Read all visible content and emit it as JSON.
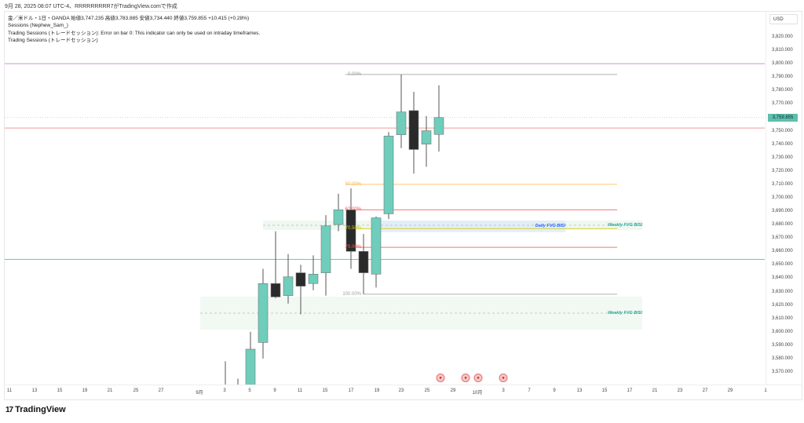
{
  "caption": "9月 28, 2025 08:07 UTC-4、RRRRRRRRR7がTradingView.comで作成",
  "legend": {
    "symbol_line": "金／米ドル・1日・OANDA  始値3,747.235  高値3,783.885  安値3,734.440  終値3,759.855  +10.415 (+0.28%)",
    "line2": "Sessions (Nephew_Sam_)",
    "line3": "Trading Sessions (トレードセッション): Error on bar 0: This indicator can only be used on intraday timeframes.",
    "line4": "Trading Sessions (トレードセッション)"
  },
  "price_axis": {
    "currency": "USD",
    "current_price": "3,759.855",
    "ticks": [
      "3,820.000",
      "3,810.000",
      "3,800.000",
      "3,790.000",
      "3,780.000",
      "3,770.000",
      "3,750.000",
      "3,740.000",
      "3,730.000",
      "3,720.000",
      "3,710.000",
      "3,700.000",
      "3,690.000",
      "3,680.000",
      "3,670.000",
      "3,660.000",
      "3,650.000",
      "3,640.000",
      "3,630.000",
      "3,620.000",
      "3,610.000",
      "3,600.000",
      "3,590.000",
      "3,580.000",
      "3,570.000"
    ]
  },
  "time_axis": [
    "11",
    "13",
    "15",
    "19",
    "21",
    "25",
    "27",
    "9月",
    "3",
    "5",
    "9",
    "11",
    "15",
    "17",
    "19",
    "23",
    "25",
    "29",
    "10月",
    "3",
    "7",
    "9",
    "13",
    "15",
    "17",
    "21",
    "23",
    "27",
    "29",
    "1"
  ],
  "fib_levels": [
    {
      "label": "0.00%",
      "price": 3792,
      "color": "#9e9e9e"
    },
    {
      "label": "50.00%",
      "price": 3710,
      "color": "#ffb74d"
    },
    {
      "label": "62.00%",
      "price": 3691,
      "color": "#ef5350"
    },
    {
      "label": "70.50%",
      "price": 3677,
      "color": "#d4c900"
    },
    {
      "label": "79.00%",
      "price": 3663,
      "color": "#ef5350"
    },
    {
      "label": "100.00%",
      "price": 3628,
      "color": "#9e9e9e"
    }
  ],
  "fvg": [
    {
      "label": "Weekly FVG BISI",
      "color": "#26a69a"
    },
    {
      "label": "Daily FVG BISI",
      "color": "#2962ff"
    },
    {
      "label": "Weekly FVG BISI",
      "color": "#26a69a"
    }
  ],
  "hlines": [
    {
      "price": 3800,
      "color": "#ce93d8"
    },
    {
      "price": 3752,
      "color": "#ef9a9a"
    },
    {
      "price": 3654,
      "color": "#4dd0e1"
    }
  ],
  "candles": [
    {
      "o": 3560,
      "h": 3578,
      "l": 3550,
      "c": 3555
    },
    {
      "o": 3555,
      "h": 3565,
      "l": 3550,
      "c": 3560
    },
    {
      "o": 3560,
      "h": 3600,
      "l": 3555,
      "c": 3587
    },
    {
      "o": 3592,
      "h": 3647,
      "l": 3580,
      "c": 3636
    },
    {
      "o": 3636,
      "h": 3675,
      "l": 3625,
      "c": 3626
    },
    {
      "o": 3627,
      "h": 3658,
      "l": 3621,
      "c": 3641
    },
    {
      "o": 3644,
      "h": 3650,
      "l": 3613,
      "c": 3634
    },
    {
      "o": 3636,
      "h": 3657,
      "l": 3631,
      "c": 3643
    },
    {
      "o": 3644,
      "h": 3687,
      "l": 3627,
      "c": 3679
    },
    {
      "o": 3680,
      "h": 3703,
      "l": 3675,
      "c": 3691
    },
    {
      "o": 3691,
      "h": 3707,
      "l": 3647,
      "c": 3660
    },
    {
      "o": 3660,
      "h": 3673,
      "l": 3628,
      "c": 3644
    },
    {
      "o": 3643,
      "h": 3686,
      "l": 3633,
      "c": 3685
    },
    {
      "o": 3688,
      "h": 3749,
      "l": 3684,
      "c": 3746
    },
    {
      "o": 3747,
      "h": 3792,
      "l": 3737,
      "c": 3764
    },
    {
      "o": 3765,
      "h": 3779,
      "l": 3718,
      "c": 3736
    },
    {
      "o": 3740,
      "h": 3761,
      "l": 3723,
      "c": 3750
    },
    {
      "o": 3747.235,
      "h": 3783.885,
      "l": 3734.44,
      "c": 3759.855
    }
  ],
  "colors": {
    "up": "#6fcdbb",
    "down": "#2a2a2a"
  },
  "event_flags": [
    "us-flag",
    "us-flag",
    "us-flag",
    "us-flag"
  ],
  "brand": "TradingView",
  "brand_logo": "17"
}
